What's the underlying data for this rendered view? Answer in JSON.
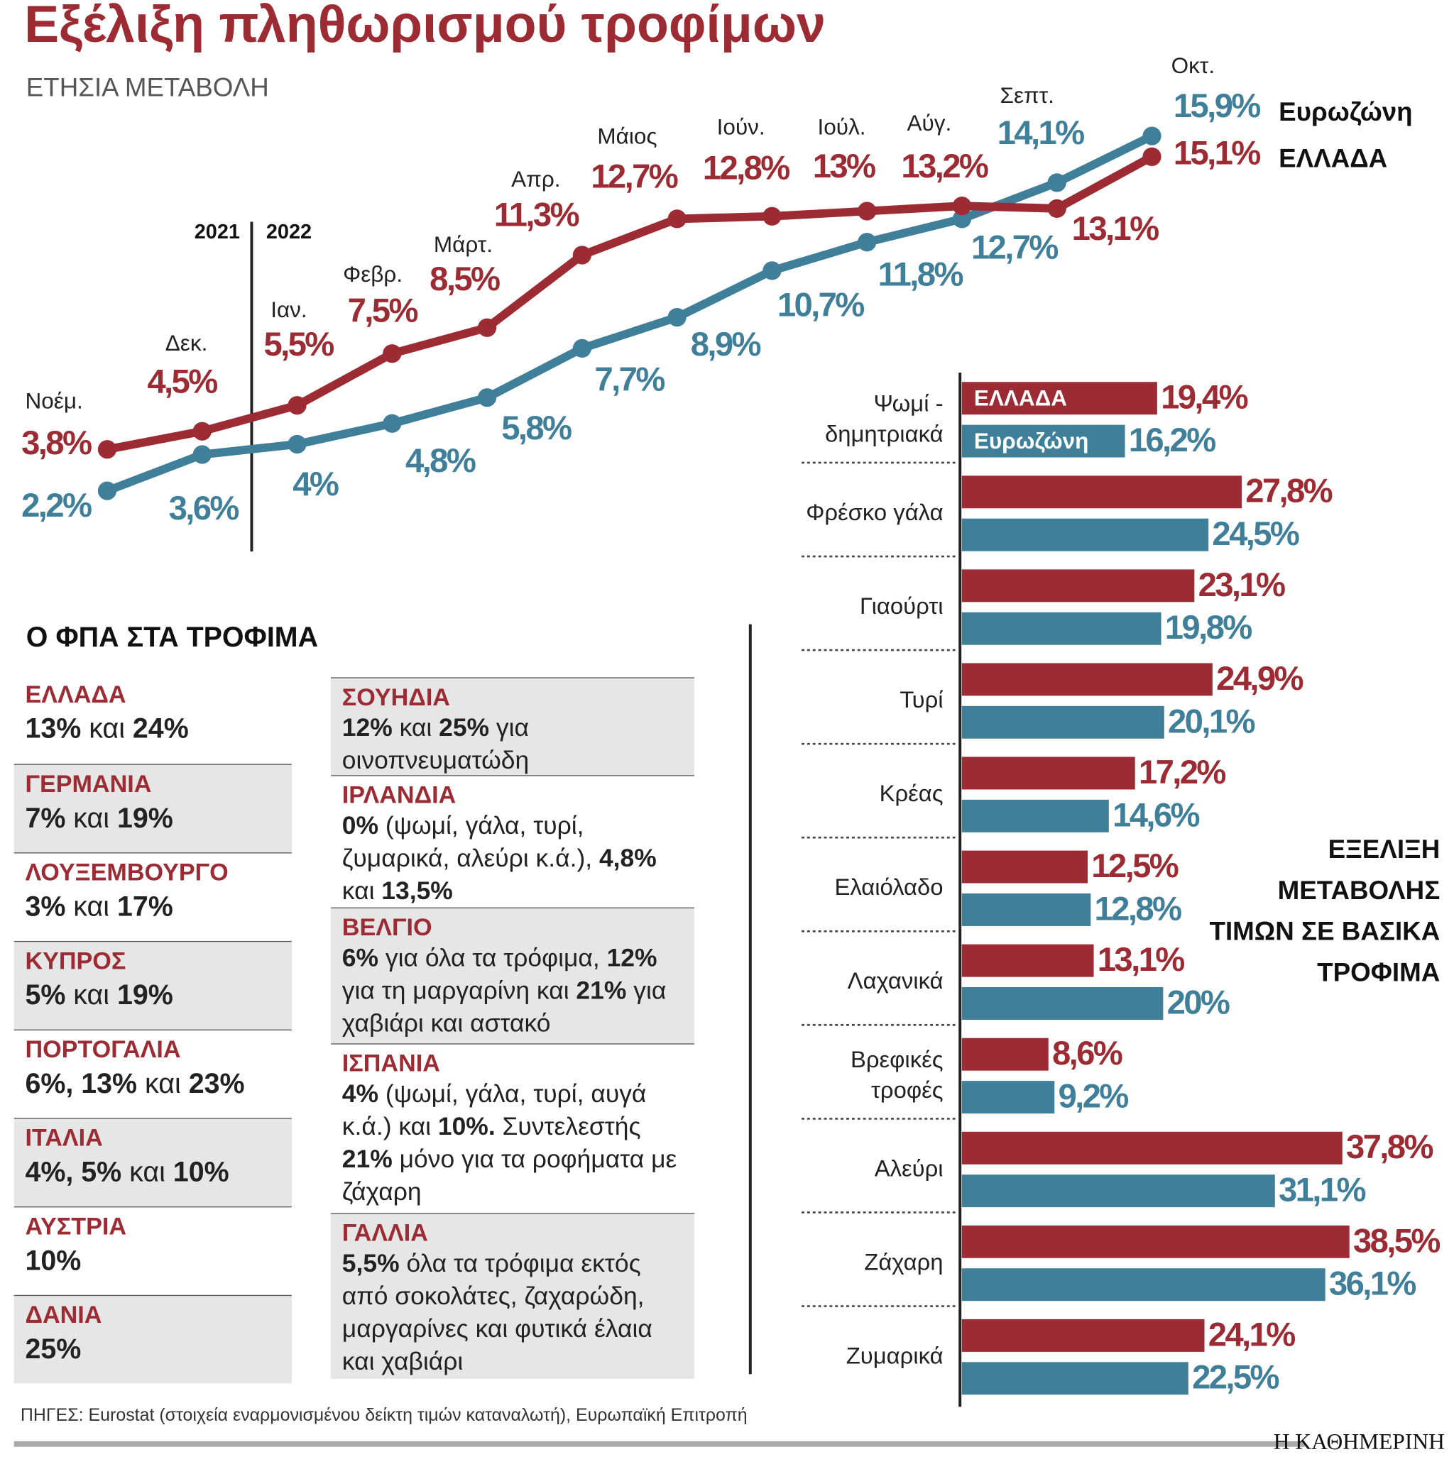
{
  "title": "Εξέλιξη πληθωρισμού τροφίμων",
  "subtitle": "ΕΤΗΣΙΑ ΜΕΤΑΒΟΛΗ",
  "chart_data": [
    {
      "type": "line",
      "categories": [
        "Νοέμ.",
        "Δεκ.",
        "Ιαν.",
        "Φεβρ.",
        "Μάρτ.",
        "Απρ.",
        "Μάιος",
        "Ιούν.",
        "Ιούλ.",
        "Αύγ.",
        "Σεπτ.",
        "Οκτ."
      ],
      "year_labels": [
        "2021",
        "2022"
      ],
      "series": [
        {
          "name": "Ευρωζώνη",
          "color": "#3f7f99",
          "values": [
            2.2,
            3.6,
            4,
            4.8,
            5.8,
            7.7,
            8.9,
            10.7,
            11.8,
            12.7,
            14.1,
            15.9
          ],
          "value_labels": [
            "2,2%",
            "3,6%",
            "4%",
            "4,8%",
            "5,8%",
            "7,7%",
            "8,9%",
            "10,7%",
            "11,8%",
            "12,7%",
            "14,1%",
            "15,9%"
          ]
        },
        {
          "name": "ΕΛΛΑΔΑ",
          "color": "#9c2b33",
          "values": [
            3.8,
            4.5,
            5.5,
            7.5,
            8.5,
            11.3,
            12.7,
            12.8,
            13,
            13.2,
            13.1,
            15.1
          ],
          "value_labels": [
            "3,8%",
            "4,5%",
            "5,5%",
            "7,5%",
            "8,5%",
            "11,3%",
            "12,7%",
            "12,8%",
            "13%",
            "13,2%",
            "13,1%",
            "15,1%"
          ]
        }
      ]
    },
    {
      "type": "bar",
      "title": "ΕΞΕΛΙΞΗ ΜΕΤΑΒΟΛΗΣ ΤΙΜΩΝ ΣΕ ΒΑΣΙΚΑ ΤΡΟΦΙΜΑ",
      "categories": [
        "Ψωμί -\nδημητριακά",
        "Φρέσκο γάλα",
        "Γιαούρτι",
        "Τυρί",
        "Κρέας",
        "Ελαιόλαδο",
        "Λαχανικά",
        "Βρεφικές\nτροφές",
        "Αλεύρι",
        "Ζάχαρη",
        "Ζυμαρικά"
      ],
      "series": [
        {
          "name": "ΕΛΛΑΔΑ",
          "color": "#9c2b33",
          "values": [
            19.4,
            27.8,
            23.1,
            24.9,
            17.2,
            12.5,
            13.1,
            8.6,
            37.8,
            38.5,
            24.1
          ],
          "value_labels": [
            "19,4%",
            "27,8%",
            "23,1%",
            "24,9%",
            "17,2%",
            "12,5%",
            "13,1%",
            "8,6%",
            "37,8%",
            "38,5%",
            "24,1%"
          ]
        },
        {
          "name": "Ευρωζώνη",
          "color": "#3f7f99",
          "values": [
            16.2,
            24.5,
            19.8,
            20.1,
            14.6,
            12.8,
            20,
            9.2,
            31.1,
            36.1,
            22.5
          ],
          "value_labels": [
            "16,2%",
            "24,5%",
            "19,8%",
            "20,1%",
            "14,6%",
            "12,8%",
            "20%",
            "9,2%",
            "31,1%",
            "36,1%",
            "22,5%"
          ]
        }
      ]
    }
  ],
  "vat_table": {
    "title": "Ο ΦΠΑ ΣΤΑ ΤΡΟΦΙΜΑ",
    "rows": [
      {
        "country": "ΕΛΛΑΔΑ",
        "parts": [
          {
            "text": "13%",
            "bold": true
          },
          {
            "text": " και ",
            "bold": false
          },
          {
            "text": "24%",
            "bold": true
          }
        ]
      },
      {
        "country": "ΓΕΡΜΑΝΙΑ",
        "parts": [
          {
            "text": "7%",
            "bold": true
          },
          {
            "text": " και ",
            "bold": false
          },
          {
            "text": "19%",
            "bold": true
          }
        ]
      },
      {
        "country": "ΛΟΥΞΕΜΒΟΥΡΓΟ",
        "parts": [
          {
            "text": "3%",
            "bold": true
          },
          {
            "text": " και ",
            "bold": false
          },
          {
            "text": "17%",
            "bold": true
          }
        ]
      },
      {
        "country": "ΚΥΠΡΟΣ",
        "parts": [
          {
            "text": "5%",
            "bold": true
          },
          {
            "text": " και ",
            "bold": false
          },
          {
            "text": "19%",
            "bold": true
          }
        ]
      },
      {
        "country": "ΠΟΡΤΟΓΑΛΙΑ",
        "parts": [
          {
            "text": "6%, 13%",
            "bold": true
          },
          {
            "text": " και ",
            "bold": false
          },
          {
            "text": "23%",
            "bold": true
          }
        ]
      },
      {
        "country": "ΙΤΑΛΙΑ",
        "parts": [
          {
            "text": "4%, 5%",
            "bold": true
          },
          {
            "text": " και ",
            "bold": false
          },
          {
            "text": "10%",
            "bold": true
          }
        ]
      },
      {
        "country": "ΑΥΣΤΡΙΑ",
        "parts": [
          {
            "text": "10%",
            "bold": true
          }
        ]
      },
      {
        "country": "ΔΑΝΙΑ",
        "parts": [
          {
            "text": "25%",
            "bold": true
          }
        ]
      },
      {
        "country": "ΣΟΥΗΔΙΑ",
        "parts": [
          {
            "text": "12%",
            "bold": true
          },
          {
            "text": " και ",
            "bold": false
          },
          {
            "text": "25%",
            "bold": true
          },
          {
            "text": " για οινοπνευματώδη",
            "bold": false
          }
        ]
      },
      {
        "country": "ΙΡΛΑΝΔΙΑ",
        "parts": [
          {
            "text": "0%",
            "bold": true
          },
          {
            "text": " (ψωμί, γάλα, τυρί, ζυμαρικά, αλεύρι κ.ά.), ",
            "bold": false
          },
          {
            "text": "4,8%",
            "bold": true
          },
          {
            "text": " και ",
            "bold": false
          },
          {
            "text": "13,5%",
            "bold": true
          }
        ]
      },
      {
        "country": "ΒΕΛΓΙΟ",
        "parts": [
          {
            "text": "6%",
            "bold": true
          },
          {
            "text": " για όλα τα τρόφιμα, ",
            "bold": false
          },
          {
            "text": "12%",
            "bold": true
          },
          {
            "text": " για τη μαργαρίνη και ",
            "bold": false
          },
          {
            "text": "21%",
            "bold": true
          },
          {
            "text": " για χαβιάρι και αστακό",
            "bold": false
          }
        ]
      },
      {
        "country": "ΙΣΠΑΝΙΑ",
        "parts": [
          {
            "text": "4%",
            "bold": true
          },
          {
            "text": " (ψωμί, γάλα, τυρί, αυγά κ.ά.) και ",
            "bold": false
          },
          {
            "text": "10%.",
            "bold": true
          },
          {
            "text": " Συντελεστής ",
            "bold": false
          },
          {
            "text": "21%",
            "bold": true
          },
          {
            "text": " μόνο για τα ροφήματα με ζάχαρη",
            "bold": false
          }
        ]
      },
      {
        "country": "ΓΑΛΛΙΑ",
        "parts": [
          {
            "text": "5,5%",
            "bold": true
          },
          {
            "text": " όλα τα τρόφιμα εκτός από σοκολάτες, ζαχαρώδη, μαργαρίνες και φυτικά έλαια και χαβιάρι",
            "bold": false
          }
        ]
      }
    ]
  },
  "source": "ΠΗΓΕΣ: Eurostat (στοιχεία εναρμονισμένου δείκτη τιμών καταναλωτή), Ευρωπαϊκή Επιτροπή",
  "brand": "Η ΚΑΘΗΜΕΡΙΝΗ"
}
